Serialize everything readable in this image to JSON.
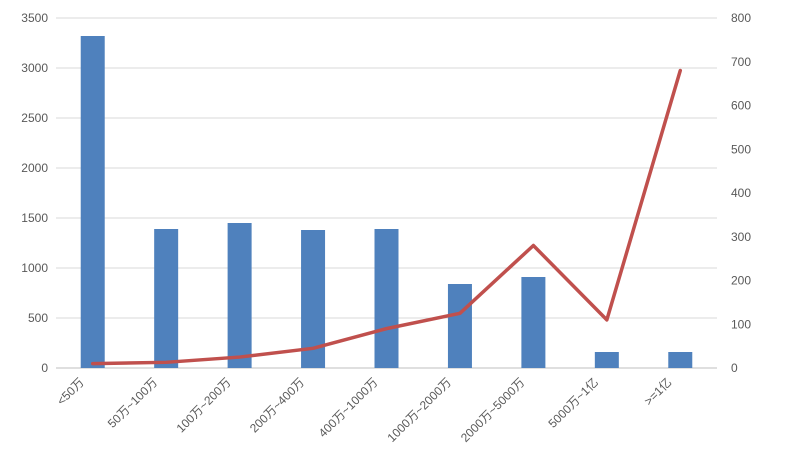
{
  "chart_data": {
    "type": "bar",
    "subtype": "combo-bar-line-dual-axis",
    "title": "",
    "xlabel": "",
    "ylabel": "",
    "legend": "none",
    "grid": "horizontal-only",
    "categories": [
      "<50万",
      "50万~100万",
      "100万~200万",
      "200万~400万",
      "400万~1000万",
      "1000万~2000万",
      "2000万~5000万",
      "5000万~1亿",
      ">=1亿"
    ],
    "series": [
      {
        "name": "bar-series",
        "type": "bar",
        "axis": "left",
        "color": "#4F81BD",
        "values": [
          3320,
          1390,
          1450,
          1380,
          1390,
          840,
          910,
          160,
          160
        ]
      },
      {
        "name": "line-series",
        "type": "line",
        "axis": "right",
        "color": "#C0504D",
        "values": [
          10,
          13,
          25,
          45,
          90,
          125,
          280,
          110,
          680
        ]
      }
    ],
    "left_axis": {
      "min": 0,
      "max": 3500,
      "step": 500,
      "tick_labels": [
        "0",
        "500",
        "1000",
        "1500",
        "2000",
        "2500",
        "3000",
        "3500"
      ]
    },
    "right_axis": {
      "min": 0,
      "max": 800,
      "step": 100,
      "tick_labels": [
        "0",
        "100",
        "200",
        "300",
        "400",
        "500",
        "600",
        "700",
        "800"
      ]
    },
    "colors": {
      "bar": "#4F81BD",
      "line": "#C0504D",
      "gridline": "#D9D9D9",
      "axis_line": "#BFBFBF",
      "tick_text": "#595959",
      "background": "#FFFFFF"
    }
  }
}
